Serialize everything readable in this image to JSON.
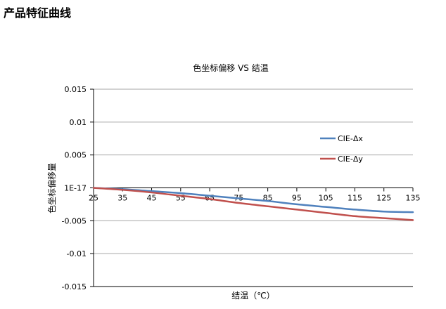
{
  "page": {
    "heading": "产品特征曲线"
  },
  "chart_data": {
    "type": "line",
    "title": "色坐标偏移 VS 结温",
    "xlabel": "结温（℃）",
    "ylabel": "色坐标偏移量",
    "x": [
      25,
      35,
      45,
      55,
      65,
      75,
      85,
      95,
      105,
      115,
      125,
      135
    ],
    "x_tick_labels": [
      "25",
      "35",
      "45",
      "55",
      "65",
      "75",
      "85",
      "95",
      "105",
      "115",
      "125",
      "135"
    ],
    "xlim": [
      25,
      135
    ],
    "ylim": [
      -0.015,
      0.015
    ],
    "y_ticks": [
      0.015,
      0.01,
      0.005,
      0,
      -0.005,
      -0.01,
      -0.015
    ],
    "y_tick_labels": [
      "0.015",
      "0.01",
      "0.005",
      "1E-17",
      "-0.005",
      "-0.01",
      "-0.015"
    ],
    "grid": true,
    "legend_position": "right",
    "series": [
      {
        "name": "CIE-Δx",
        "color": "#4f81bd",
        "values": [
          0,
          -0.0002,
          -0.0005,
          -0.0008,
          -0.0012,
          -0.0016,
          -0.002,
          -0.0025,
          -0.0029,
          -0.0033,
          -0.0036,
          -0.0037
        ]
      },
      {
        "name": "CIE-Δy",
        "color": "#c0504d",
        "values": [
          0,
          -0.0003,
          -0.0007,
          -0.0012,
          -0.0017,
          -0.0023,
          -0.0028,
          -0.0033,
          -0.0038,
          -0.0043,
          -0.0046,
          -0.0049
        ]
      }
    ]
  }
}
